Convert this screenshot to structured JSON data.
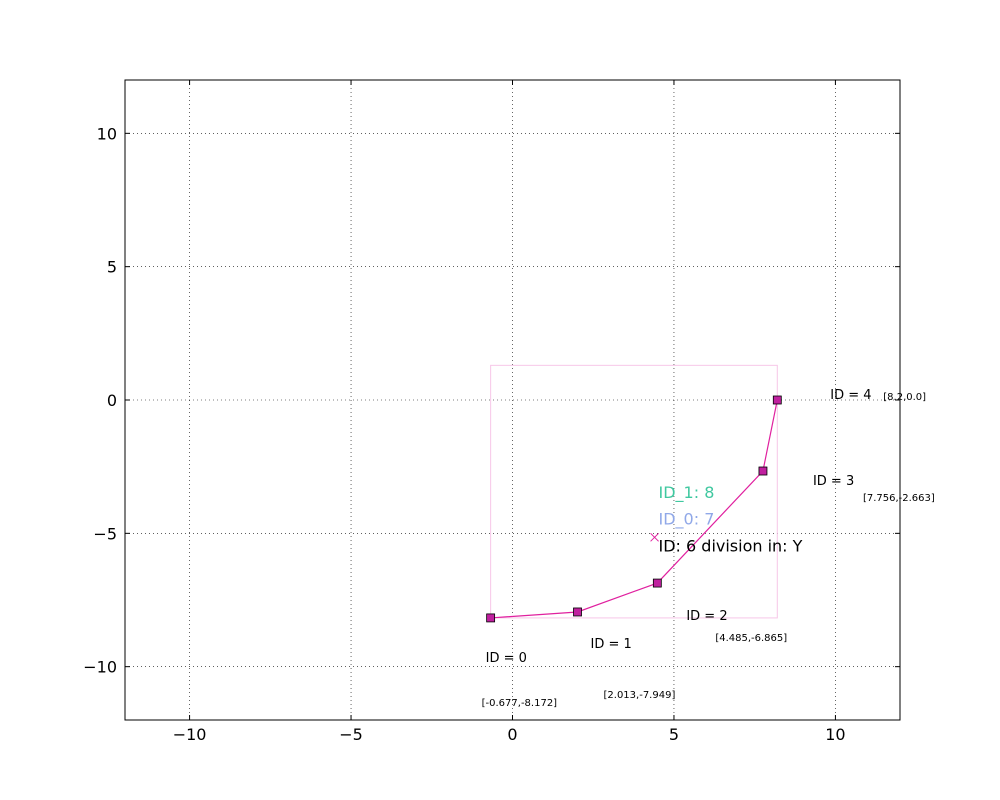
{
  "chart_data": {
    "type": "line",
    "title": "",
    "xlabel": "",
    "ylabel": "",
    "xlim": [
      -12,
      12
    ],
    "ylim": [
      -12,
      12
    ],
    "grid": true,
    "x_ticks": [
      -10,
      -5,
      0,
      5,
      10
    ],
    "y_ticks": [
      -10,
      -5,
      0,
      5,
      10
    ],
    "x_tick_labels": [
      "−10",
      "−5",
      "0",
      "5",
      "10"
    ],
    "y_tick_labels": [
      "−10",
      "−5",
      "0",
      "5",
      "10"
    ],
    "line_color": "#e0209f",
    "marker_color": "#c0209f",
    "box_color": "#f7c6e8",
    "points": [
      {
        "x": -0.677,
        "y": -8.172,
        "id_label": "ID = 0",
        "coord_label": "[-0.677,-8.172]"
      },
      {
        "x": 2.013,
        "y": -7.949,
        "id_label": "ID = 1",
        "coord_label": "[2.013,-7.949]"
      },
      {
        "x": 4.485,
        "y": -6.865,
        "id_label": "ID = 2",
        "coord_label": "[4.485,-6.865]"
      },
      {
        "x": 7.756,
        "y": -2.663,
        "id_label": "ID = 3",
        "coord_label": "[7.756,-2.663]"
      },
      {
        "x": 8.2,
        "y": 0.0,
        "id_label": "ID = 4",
        "coord_label": "[8.2,0.0]"
      }
    ],
    "bounding_box": {
      "x_min": -0.677,
      "x_max": 8.2,
      "y_min": -8.172,
      "y_max": 1.3
    },
    "center_marker": {
      "x": 4.4,
      "y": -5.15,
      "color": "#e0209f"
    },
    "annotations": [
      {
        "text": "ID_1: 8",
        "color": "#40c8a0",
        "x": 4.8,
        "y": -3.6
      },
      {
        "text": "ID_0: 7",
        "color": "#90a8e8",
        "x": 4.8,
        "y": -4.6
      },
      {
        "text": "ID: 6 division in: Y",
        "color": "#000000",
        "x": 4.8,
        "y": -5.6
      }
    ]
  }
}
